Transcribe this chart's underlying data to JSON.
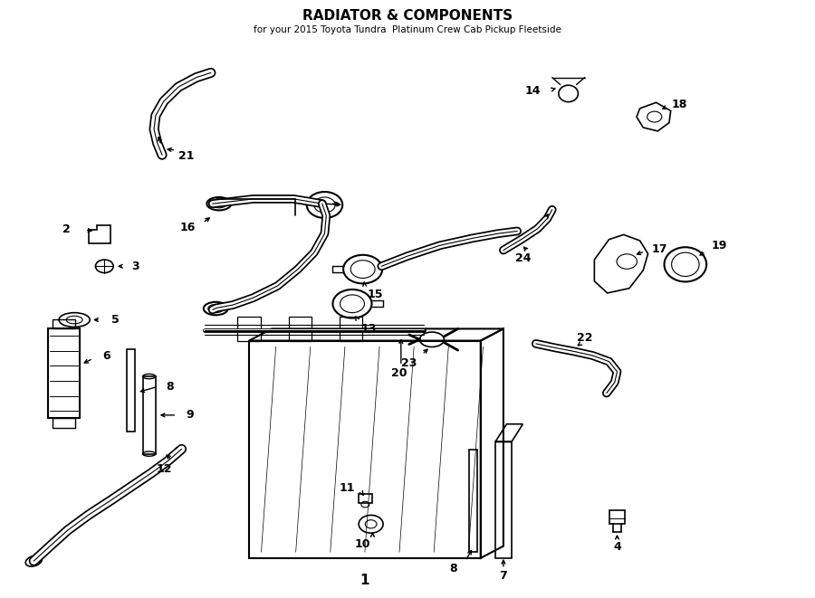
{
  "title": "RADIATOR & COMPONENTS",
  "subtitle": "for your 2015 Toyota Tundra  Platinum Crew Cab Pickup Fleetside",
  "bg_color": "#ffffff",
  "line_color": "#000000",
  "text_color": "#000000",
  "figure_width": 9.0,
  "figure_height": 6.61,
  "dpi": 100
}
